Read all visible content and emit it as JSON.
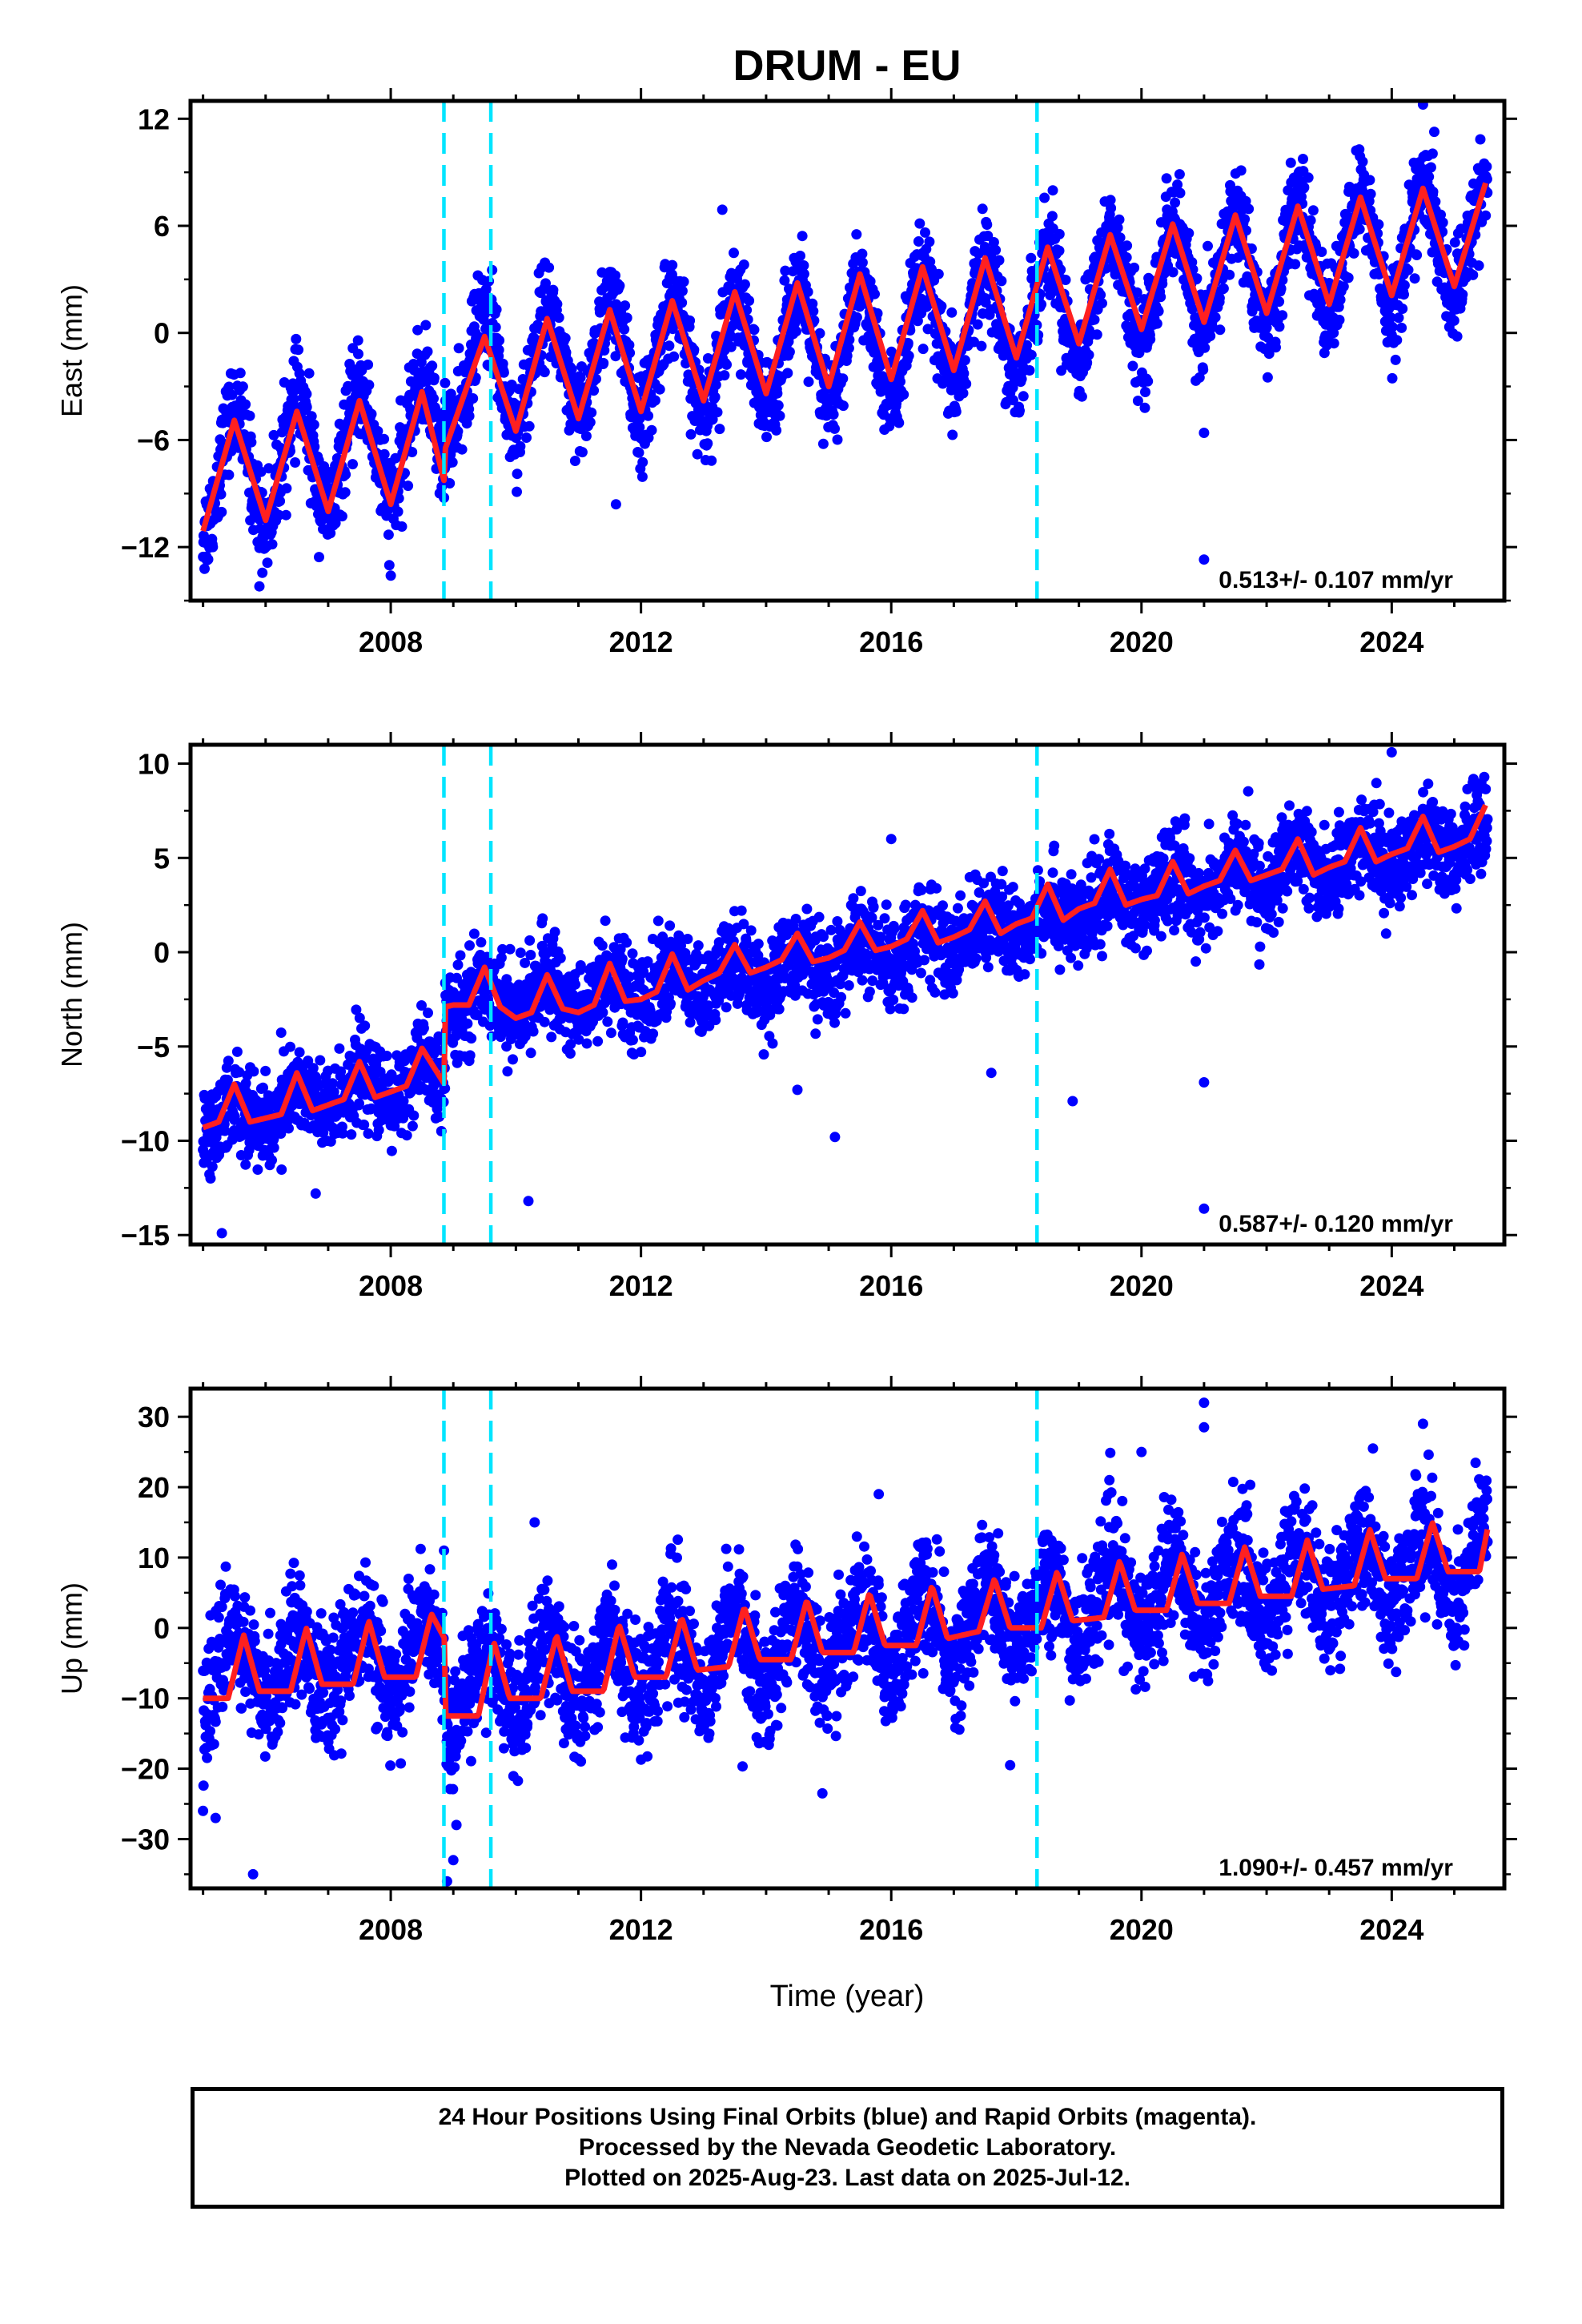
{
  "title": "DRUM - EU",
  "x_axis_label": "Time (year)",
  "footer": {
    "line1": "24 Hour Positions Using Final Orbits (blue) and Rapid Orbits (magenta).",
    "line2": "Processed by the Nevada Geodetic Laboratory.",
    "line3": "Plotted on 2025-Aug-23. Last data on 2025-Jul-12."
  },
  "colors": {
    "data_points": "#0000ff",
    "model_line": "#ff2020",
    "event_lines": "#00e5ff",
    "frame": "#000000"
  },
  "chart_data": [
    {
      "type": "scatter",
      "ylabel": "East (mm)",
      "xlim": [
        2004.8,
        2025.8
      ],
      "ylim": [
        -15,
        13
      ],
      "x_ticks": [
        2008,
        2012,
        2016,
        2020,
        2024
      ],
      "y_ticks": [
        -12,
        -6,
        0,
        6,
        12
      ],
      "event_lines_x": [
        2008.85,
        2009.6,
        2018.33
      ],
      "rate_label": "0.513+/- 0.107 mm/yr",
      "series": [
        {
          "kind": "points",
          "x_range": [
            2005.0,
            2025.53
          ],
          "trend": {
            "x": [
              2005.0,
              2008.86,
              2008.87,
              2012.0,
              2016.0,
              2020.0,
              2025.5
            ],
            "y": [
              -8.0,
              -5.6,
              -2.3,
              -1.5,
              -0.6,
              2.7,
              5.4
            ]
          },
          "annual_amplitude": 3.2,
          "scatter_sd": 1.3,
          "outliers": [
            [
              2005.9,
              -14.2
            ],
            [
              2008.0,
              -13.6
            ],
            [
              2011.6,
              -9.6
            ],
            [
              2013.3,
              6.9
            ],
            [
              2021.0,
              -5.6
            ],
            [
              2021.0,
              -12.7
            ],
            [
              2024.5,
              12.8
            ]
          ]
        },
        {
          "kind": "model_line",
          "x": [
            2005.0,
            2005.5,
            2006.0,
            2006.5,
            2007.0,
            2007.5,
            2008.0,
            2008.5,
            2008.86,
            2008.87,
            2009.5,
            2010.0,
            2010.5,
            2011.0,
            2011.5,
            2012.0,
            2012.5,
            2013.0,
            2013.5,
            2014.0,
            2014.5,
            2015.0,
            2015.5,
            2016.0,
            2016.5,
            2017.0,
            2017.5,
            2018.0,
            2018.5,
            2019.0,
            2019.5,
            2020.0,
            2020.5,
            2021.0,
            2021.5,
            2022.0,
            2022.5,
            2023.0,
            2023.5,
            2024.0,
            2024.5,
            2025.0,
            2025.5
          ],
          "y": [
            -11.1,
            -4.9,
            -10.5,
            -4.4,
            -10.0,
            -3.8,
            -9.6,
            -3.3,
            -8.4,
            -6.5,
            -0.2,
            -5.5,
            0.8,
            -4.8,
            1.3,
            -4.4,
            1.8,
            -3.8,
            2.3,
            -3.4,
            2.8,
            -3.0,
            3.3,
            -2.6,
            3.7,
            -2.1,
            4.2,
            -1.4,
            4.8,
            -0.6,
            5.5,
            0.2,
            6.1,
            0.6,
            6.6,
            1.1,
            7.1,
            1.6,
            7.6,
            2.1,
            8.1,
            2.6,
            8.4
          ]
        }
      ]
    },
    {
      "type": "scatter",
      "ylabel": "North (mm)",
      "xlim": [
        2004.8,
        2025.8
      ],
      "ylim": [
        -15.5,
        11
      ],
      "x_ticks": [
        2008,
        2012,
        2016,
        2020,
        2024
      ],
      "y_ticks": [
        -15,
        -10,
        -5,
        0,
        5,
        10
      ],
      "event_lines_x": [
        2008.85,
        2009.6,
        2018.33
      ],
      "rate_label": "0.587+/- 0.120 mm/yr",
      "series": [
        {
          "kind": "points",
          "x_range": [
            2005.0,
            2025.53
          ],
          "trend": {
            "x": [
              2005.0,
              2008.86,
              2008.87,
              2012.0,
              2016.0,
              2020.0,
              2025.5
            ],
            "y": [
              -9.0,
              -6.6,
              -2.6,
              -2.0,
              0.0,
              3.0,
              6.2
            ]
          },
          "annual_amplitude": 0.9,
          "scatter_sd": 1.2,
          "outliers": [
            [
              2005.3,
              -14.9
            ],
            [
              2006.8,
              -12.8
            ],
            [
              2010.2,
              -13.2
            ],
            [
              2014.5,
              -7.3
            ],
            [
              2015.1,
              -9.8
            ],
            [
              2016.0,
              6.0
            ],
            [
              2017.6,
              -6.4
            ],
            [
              2018.9,
              -7.9
            ],
            [
              2021.0,
              -6.9
            ],
            [
              2021.0,
              -13.6
            ],
            [
              2024.0,
              10.6
            ]
          ]
        },
        {
          "kind": "model_line",
          "x": [
            2005.0,
            2005.25,
            2005.5,
            2005.75,
            2006.0,
            2006.25,
            2006.5,
            2006.75,
            2007.0,
            2007.25,
            2007.5,
            2007.75,
            2008.0,
            2008.25,
            2008.5,
            2008.86,
            2008.87,
            2009.0,
            2009.25,
            2009.5,
            2009.75,
            2010.0,
            2010.25,
            2010.5,
            2010.75,
            2011.0,
            2011.25,
            2011.5,
            2011.75,
            2012.0,
            2012.25,
            2012.5,
            2012.75,
            2013.0,
            2013.25,
            2013.5,
            2013.75,
            2014.0,
            2014.25,
            2014.5,
            2014.75,
            2015.0,
            2015.25,
            2015.5,
            2015.75,
            2016.0,
            2016.25,
            2016.5,
            2016.75,
            2017.0,
            2017.25,
            2017.5,
            2017.75,
            2018.0,
            2018.25,
            2018.5,
            2018.75,
            2019.0,
            2019.25,
            2019.5,
            2019.75,
            2020.0,
            2020.25,
            2020.5,
            2020.75,
            2021.0,
            2021.25,
            2021.5,
            2021.75,
            2022.0,
            2022.25,
            2022.5,
            2022.75,
            2023.0,
            2023.25,
            2023.5,
            2023.75,
            2024.0,
            2024.25,
            2024.5,
            2024.75,
            2025.0,
            2025.25,
            2025.5
          ],
          "y": [
            -9.3,
            -9.0,
            -7.0,
            -9.0,
            -8.8,
            -8.6,
            -6.4,
            -8.4,
            -8.1,
            -7.8,
            -5.8,
            -7.7,
            -7.4,
            -7.1,
            -5.1,
            -7.0,
            -2.9,
            -2.8,
            -2.8,
            -0.8,
            -2.9,
            -3.5,
            -3.2,
            -1.2,
            -3.0,
            -3.2,
            -2.8,
            -0.6,
            -2.6,
            -2.5,
            -2.1,
            -0.1,
            -2.0,
            -1.5,
            -1.1,
            0.4,
            -1.1,
            -0.8,
            -0.4,
            1.0,
            -0.5,
            -0.3,
            0.1,
            1.6,
            0.1,
            0.3,
            0.7,
            2.2,
            0.5,
            0.8,
            1.2,
            2.7,
            1.0,
            1.5,
            1.8,
            3.6,
            1.7,
            2.3,
            2.6,
            4.4,
            2.5,
            2.8,
            3.0,
            4.8,
            3.1,
            3.5,
            3.8,
            5.4,
            3.8,
            4.1,
            4.4,
            6.0,
            4.1,
            4.5,
            4.8,
            6.6,
            4.8,
            5.2,
            5.5,
            7.2,
            5.3,
            5.6,
            6.0,
            7.8
          ]
        }
      ]
    },
    {
      "type": "scatter",
      "ylabel": "Up (mm)",
      "xlim": [
        2004.8,
        2025.8
      ],
      "ylim": [
        -37,
        34
      ],
      "x_ticks": [
        2008,
        2012,
        2016,
        2020,
        2024
      ],
      "y_ticks": [
        -30,
        -20,
        -10,
        0,
        10,
        20,
        30
      ],
      "event_lines_x": [
        2008.85,
        2009.6,
        2018.33
      ],
      "rate_label": "1.090+/- 0.457 mm/yr",
      "series": [
        {
          "kind": "points",
          "x_range": [
            2005.0,
            2025.53
          ],
          "trend": {
            "x": [
              2005.0,
              2008.86,
              2008.87,
              2012.0,
              2016.0,
              2020.0,
              2025.5
            ],
            "y": [
              -6.0,
              -4.0,
              -9.0,
              -4.5,
              -1.0,
              4.5,
              9.5
            ]
          },
          "annual_amplitude": 5.0,
          "scatter_sd": 4.2,
          "outliers": [
            [
              2005.0,
              -26.0
            ],
            [
              2005.2,
              -27.0
            ],
            [
              2005.8,
              -35.0
            ],
            [
              2008.9,
              -36.0
            ],
            [
              2009.0,
              -33.0
            ],
            [
              2009.05,
              -28.0
            ],
            [
              2010.3,
              15.0
            ],
            [
              2014.9,
              -23.5
            ],
            [
              2015.8,
              19.0
            ],
            [
              2017.9,
              -19.5
            ],
            [
              2020.0,
              25.0
            ],
            [
              2021.0,
              32.0
            ],
            [
              2021.0,
              28.5
            ],
            [
              2023.7,
              25.5
            ],
            [
              2024.5,
              29.0
            ]
          ]
        },
        {
          "kind": "model_line",
          "x": [
            2005.0,
            2005.4,
            2005.65,
            2005.9,
            2006.4,
            2006.65,
            2006.9,
            2007.4,
            2007.65,
            2007.9,
            2008.4,
            2008.65,
            2008.86,
            2008.87,
            2009.4,
            2009.65,
            2009.9,
            2010.4,
            2010.65,
            2010.9,
            2011.4,
            2011.65,
            2011.9,
            2012.4,
            2012.65,
            2012.9,
            2013.4,
            2013.65,
            2013.9,
            2014.4,
            2014.65,
            2014.9,
            2015.4,
            2015.65,
            2015.9,
            2016.4,
            2016.65,
            2016.9,
            2017.4,
            2017.65,
            2017.9,
            2018.4,
            2018.65,
            2018.9,
            2019.4,
            2019.65,
            2019.9,
            2020.4,
            2020.65,
            2020.9,
            2021.4,
            2021.65,
            2021.9,
            2022.4,
            2022.65,
            2022.9,
            2023.4,
            2023.65,
            2023.9,
            2024.4,
            2024.65,
            2024.9,
            2025.4,
            2025.53
          ],
          "y": [
            -10.0,
            -10.0,
            -1.0,
            -9.0,
            -9.0,
            0.0,
            -8.0,
            -8.0,
            1.0,
            -7.0,
            -7.0,
            2.0,
            -1.5,
            -12.5,
            -12.5,
            -2.0,
            -10.0,
            -10.0,
            -1.0,
            -9.0,
            -9.0,
            0.5,
            -7.0,
            -7.0,
            1.5,
            -6.0,
            -5.5,
            3.0,
            -4.5,
            -4.5,
            4.0,
            -3.5,
            -3.5,
            5.0,
            -2.5,
            -2.5,
            6.0,
            -1.5,
            -0.5,
            7.0,
            0.0,
            0.0,
            8.0,
            1.0,
            1.5,
            9.5,
            2.5,
            2.5,
            10.5,
            3.5,
            3.5,
            11.5,
            4.5,
            4.5,
            12.5,
            5.5,
            6.0,
            14.0,
            7.0,
            7.0,
            15.0,
            8.0,
            8.0,
            14.0
          ]
        }
      ]
    }
  ]
}
